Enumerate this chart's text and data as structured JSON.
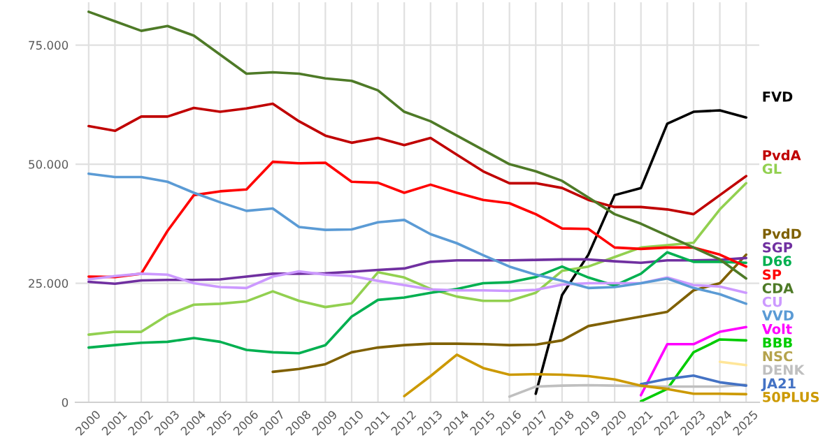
{
  "chart_data": {
    "type": "line",
    "categories": [
      "2000",
      "2001",
      "2002",
      "2003",
      "2004",
      "2005",
      "2006",
      "2007",
      "2008",
      "2009",
      "2010",
      "2011",
      "2012",
      "2013",
      "2014",
      "2015",
      "2016",
      "2017",
      "2018",
      "2019",
      "2020",
      "2021",
      "2022",
      "2023",
      "2024",
      "2025"
    ],
    "ylim": [
      0,
      84000
    ],
    "yticks": [
      {
        "value": 0,
        "label": "0"
      },
      {
        "value": 25000,
        "label": "25.000"
      },
      {
        "value": 50000,
        "label": "50.000"
      },
      {
        "value": 75000,
        "label": "75.000"
      }
    ],
    "grid": true,
    "legend": false,
    "line_style": "solid",
    "marker": "none",
    "series": [
      {
        "name": "FVD",
        "color": "#000000",
        "values": [
          null,
          null,
          null,
          null,
          null,
          null,
          null,
          null,
          null,
          null,
          null,
          null,
          null,
          null,
          null,
          null,
          null,
          1800,
          22500,
          31000,
          43500,
          45000,
          58500,
          61000,
          61300,
          59800
        ]
      },
      {
        "name": "PvdA",
        "color": "#c00000",
        "values": [
          58000,
          57000,
          60000,
          60000,
          61800,
          61000,
          61700,
          62700,
          59000,
          56000,
          54500,
          55500,
          54000,
          55500,
          52000,
          48500,
          46000,
          46000,
          45000,
          42500,
          41000,
          41000,
          40500,
          39500,
          43500,
          47500
        ]
      },
      {
        "name": "GL",
        "color": "#92d050",
        "values": [
          14200,
          14800,
          14800,
          18300,
          20500,
          20700,
          21200,
          23300,
          21300,
          20000,
          20800,
          27300,
          26200,
          23800,
          22200,
          21300,
          21300,
          23000,
          27600,
          28500,
          30500,
          32500,
          33000,
          33500,
          40500,
          46000
        ]
      },
      {
        "name": "PvdD",
        "color": "#7f6000",
        "values": [
          null,
          null,
          null,
          null,
          null,
          null,
          null,
          6400,
          7000,
          8000,
          10500,
          11500,
          12000,
          12300,
          12300,
          12200,
          12000,
          12100,
          13000,
          16000,
          17000,
          18000,
          19000,
          23500,
          25000,
          31000
        ]
      },
      {
        "name": "SGP",
        "color": "#7030a0",
        "values": [
          25300,
          24900,
          25600,
          25700,
          25700,
          25800,
          26400,
          27000,
          27000,
          27100,
          27400,
          27800,
          28100,
          29500,
          29800,
          29800,
          29800,
          29900,
          30000,
          30000,
          29600,
          29300,
          29800,
          29800,
          29900,
          30300
        ]
      },
      {
        "name": "D66",
        "color": "#00b050",
        "values": [
          11500,
          12000,
          12500,
          12700,
          13500,
          12700,
          11000,
          10500,
          10300,
          12000,
          18000,
          21500,
          22000,
          23000,
          23800,
          25000,
          25200,
          26300,
          28500,
          26200,
          24500,
          27000,
          31500,
          29500,
          29500,
          29300
        ]
      },
      {
        "name": "SP",
        "color": "#ff0000",
        "values": [
          26400,
          26300,
          27000,
          36000,
          43500,
          44300,
          44700,
          50500,
          50200,
          50300,
          46300,
          46100,
          44000,
          45700,
          44000,
          42500,
          41800,
          39500,
          36500,
          36400,
          32500,
          32200,
          32500,
          32500,
          31000,
          28500
        ]
      },
      {
        "name": "CDA",
        "color": "#4e7a27",
        "values": [
          82000,
          80000,
          78000,
          79000,
          77000,
          73000,
          69000,
          69300,
          69000,
          68000,
          67500,
          65500,
          61000,
          59000,
          56000,
          53000,
          50000,
          48500,
          46500,
          43000,
          39500,
          37500,
          35000,
          32500,
          30000,
          26000
        ]
      },
      {
        "name": "CU",
        "color": "#cc99ff",
        "values": [
          25800,
          26500,
          27000,
          26800,
          25000,
          24200,
          24000,
          26400,
          27500,
          26800,
          26500,
          25500,
          24600,
          23700,
          23500,
          23500,
          23400,
          23600,
          24700,
          25000,
          25000,
          25000,
          26200,
          24600,
          24300,
          23000
        ]
      },
      {
        "name": "VVD",
        "color": "#5b9bd5",
        "values": [
          48000,
          47300,
          47300,
          46300,
          44000,
          42000,
          40200,
          40700,
          36800,
          36200,
          36300,
          37800,
          38300,
          35300,
          33400,
          30900,
          28500,
          26800,
          25500,
          24000,
          24200,
          25000,
          26000,
          24000,
          22700,
          20700
        ]
      },
      {
        "name": "Volt",
        "color": "#ff00ff",
        "values": [
          null,
          null,
          null,
          null,
          null,
          null,
          null,
          null,
          null,
          null,
          null,
          null,
          null,
          null,
          null,
          null,
          null,
          null,
          null,
          null,
          null,
          1500,
          12200,
          12200,
          14800,
          15800
        ]
      },
      {
        "name": "BBB",
        "color": "#00cc00",
        "values": [
          null,
          null,
          null,
          null,
          null,
          null,
          null,
          null,
          null,
          null,
          null,
          null,
          null,
          null,
          null,
          null,
          null,
          null,
          null,
          null,
          null,
          200,
          2800,
          10500,
          13200,
          13000
        ]
      },
      {
        "name": "NSC",
        "color": "#ffe699",
        "values": [
          null,
          null,
          null,
          null,
          null,
          null,
          null,
          null,
          null,
          null,
          null,
          null,
          null,
          null,
          null,
          null,
          null,
          null,
          null,
          null,
          null,
          null,
          null,
          null,
          8500,
          7800
        ]
      },
      {
        "name": "DENK",
        "color": "#bfbfbf",
        "values": [
          null,
          null,
          null,
          null,
          null,
          null,
          null,
          null,
          null,
          null,
          null,
          null,
          null,
          null,
          null,
          null,
          1200,
          3300,
          3500,
          3600,
          3500,
          3400,
          3300,
          3300,
          3300,
          3700
        ]
      },
      {
        "name": "JA21",
        "color": "#4472c4",
        "values": [
          null,
          null,
          null,
          null,
          null,
          null,
          null,
          null,
          null,
          null,
          null,
          null,
          null,
          null,
          null,
          null,
          null,
          null,
          null,
          null,
          null,
          3800,
          4900,
          5600,
          4200,
          3500
        ]
      },
      {
        "name": "50PLUS",
        "color": "#cc9900",
        "values": [
          null,
          null,
          null,
          null,
          null,
          null,
          null,
          null,
          null,
          null,
          null,
          null,
          1300,
          5500,
          10000,
          7200,
          5800,
          5900,
          5800,
          5500,
          4800,
          3500,
          2800,
          1800,
          1800,
          1700
        ]
      }
    ]
  }
}
